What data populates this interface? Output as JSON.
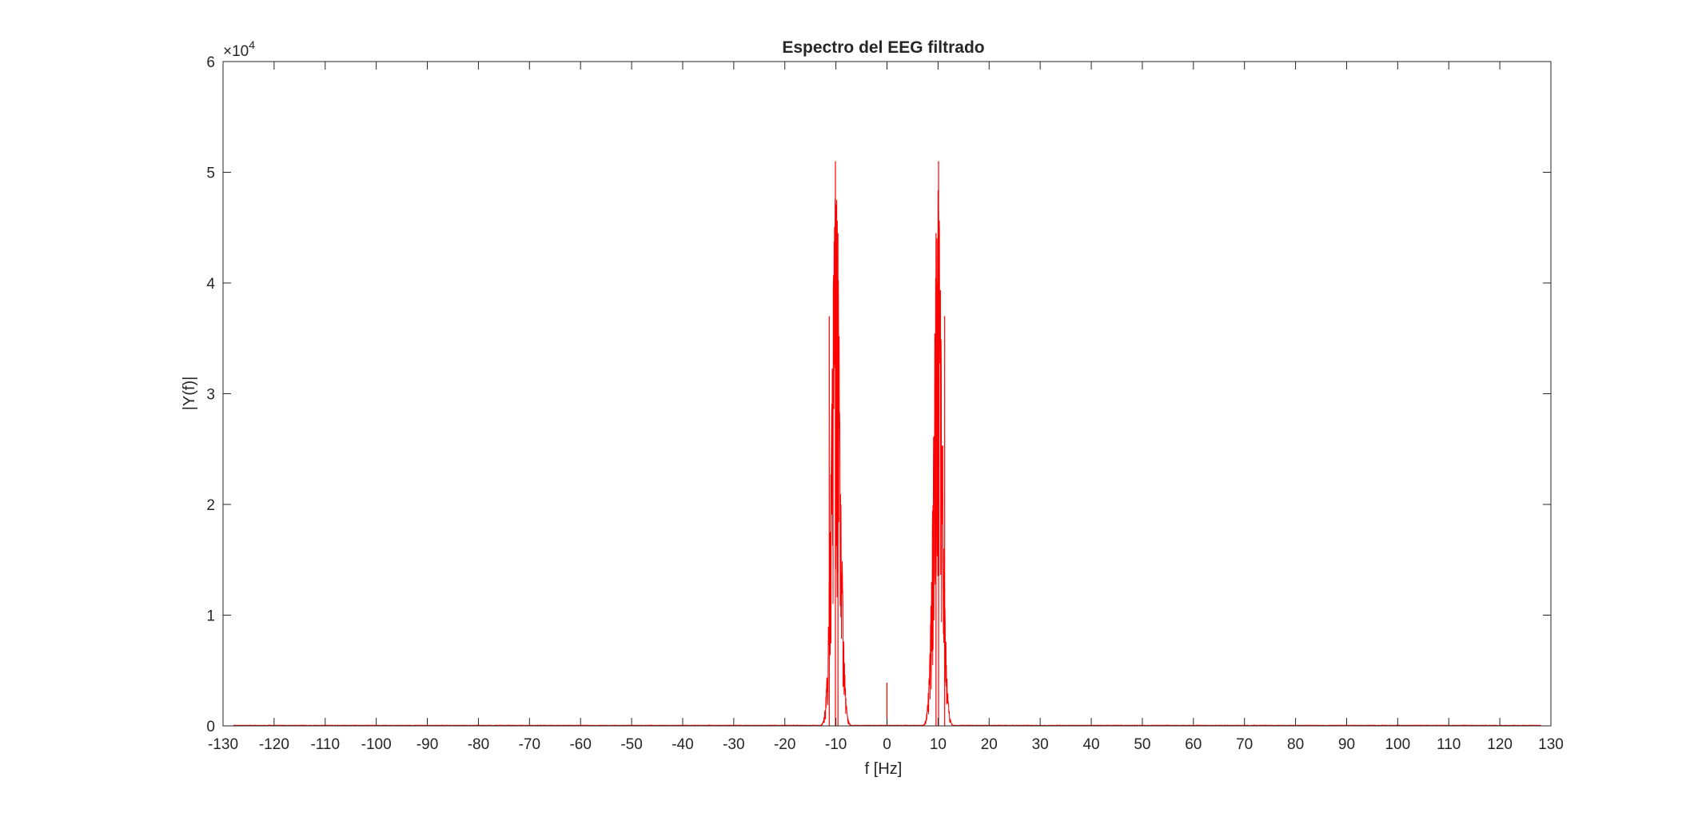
{
  "chart_data": {
    "type": "line",
    "title": "Espectro del EEG filtrado",
    "xlabel": "f [Hz]",
    "ylabel": "|Y(f)|",
    "y_exponent_label": "×10",
    "y_exponent_power": "4",
    "xlim": [
      -130,
      130
    ],
    "ylim": [
      0,
      60000
    ],
    "x_ticks": [
      -130,
      -120,
      -110,
      -100,
      -90,
      -80,
      -70,
      -60,
      -50,
      -40,
      -30,
      -20,
      -10,
      0,
      10,
      20,
      30,
      40,
      50,
      60,
      70,
      80,
      90,
      100,
      110,
      120,
      130
    ],
    "x_tick_labels": [
      "-130",
      "-120",
      "-110",
      "-100",
      "-90",
      "-80",
      "-70",
      "-60",
      "-50",
      "-40",
      "-30",
      "-20",
      "-10",
      "0",
      "10",
      "20",
      "30",
      "40",
      "50",
      "60",
      "70",
      "80",
      "90",
      "100",
      "110",
      "120",
      "130"
    ],
    "y_ticks": [
      0,
      10000,
      20000,
      30000,
      40000,
      50000,
      60000
    ],
    "y_tick_labels": [
      "0",
      "1",
      "2",
      "3",
      "4",
      "5",
      "6"
    ],
    "grid": false,
    "series": [
      {
        "color": "#ff0000",
        "x_range": [
          -128,
          128
        ],
        "peaks": [
          {
            "center": -10,
            "max": 51000
          },
          {
            "center": 10,
            "max": 51000
          }
        ],
        "spikes": [
          {
            "x": -11.3,
            "y": 37000
          },
          {
            "x": -10.1,
            "y": 51000
          },
          {
            "x": -9.6,
            "y": 44500
          },
          {
            "x": 0,
            "y": 3900
          },
          {
            "x": 9.6,
            "y": 44500
          },
          {
            "x": 10.1,
            "y": 51000
          },
          {
            "x": 11.3,
            "y": 37000
          }
        ]
      }
    ]
  }
}
